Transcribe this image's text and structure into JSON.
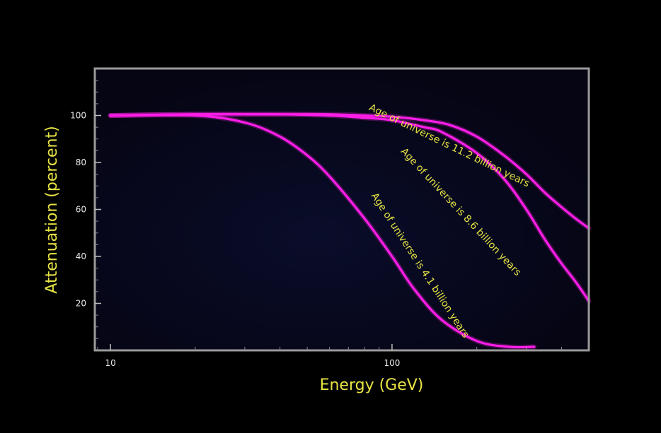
{
  "chart_data": {
    "type": "line",
    "title": "",
    "xlabel": "Energy (GeV)",
    "ylabel": "Attenuation (percent)",
    "x_scale": "log",
    "xlim": [
      8.8,
      500
    ],
    "ylim": [
      0,
      120
    ],
    "x_ticks": [
      10,
      100
    ],
    "y_ticks": [
      20,
      40,
      60,
      80,
      100
    ],
    "grid": false,
    "colors": {
      "series": "#ff1ee8",
      "text": "#e8e445",
      "frame": "#9a9a9a",
      "background": "#06071a"
    },
    "series": [
      {
        "name": "Age of universe is 4.1 billion years",
        "x": [
          10,
          20,
          30,
          40,
          50,
          60,
          80,
          100,
          120,
          150,
          200,
          260,
          320
        ],
        "y": [
          100,
          100,
          97,
          91,
          83,
          74,
          56,
          40,
          26,
          13,
          4,
          1.5,
          1.5
        ]
      },
      {
        "name": "Age of universe is 8.6 billion years",
        "x": [
          10,
          20,
          40,
          60,
          80,
          100,
          130,
          150,
          200,
          250,
          300,
          350,
          400,
          450,
          500
        ],
        "y": [
          100,
          100.5,
          100.5,
          100,
          99,
          98,
          95,
          93,
          84,
          73,
          60,
          47,
          37,
          29,
          21
        ]
      },
      {
        "name": "Age of universe is 11.2 billion years",
        "x": [
          10,
          20,
          40,
          60,
          80,
          100,
          130,
          160,
          200,
          250,
          300,
          350,
          400,
          450,
          500
        ],
        "y": [
          100,
          100.5,
          100.5,
          100.5,
          100,
          99.5,
          98,
          96,
          91,
          83,
          75,
          67,
          61,
          56,
          52
        ]
      }
    ]
  }
}
